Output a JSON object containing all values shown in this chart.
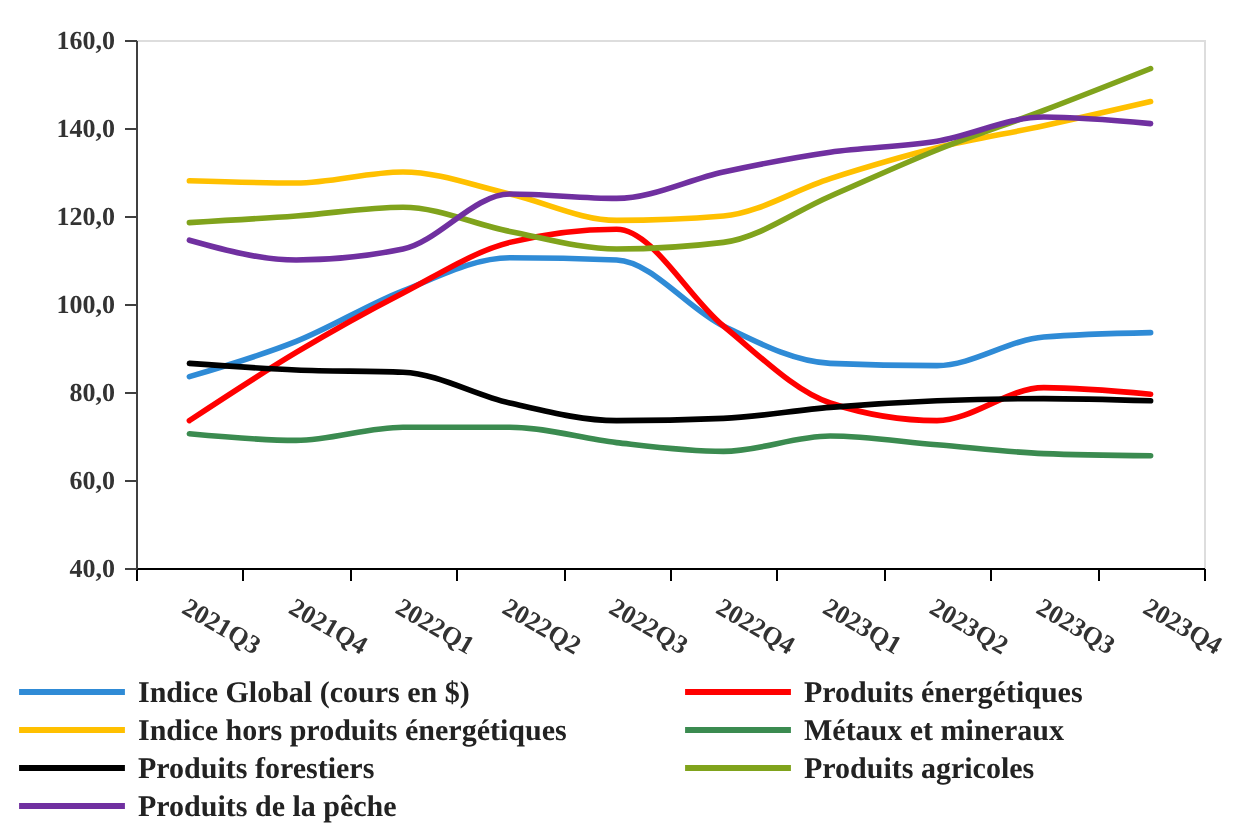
{
  "chart_data": {
    "type": "line",
    "categories": [
      "2021Q3",
      "2021Q4",
      "2022Q1",
      "2022Q2",
      "2022Q3",
      "2022Q4",
      "2023Q1",
      "2023Q2",
      "2023Q3",
      "2023Q4"
    ],
    "series": [
      {
        "name": "Indice Global (cours en $)",
        "color": "#2f8bd6",
        "values": [
          83.5,
          91.5,
          103,
          110.5,
          110,
          95,
          86.5,
          86,
          92.5,
          93.5
        ]
      },
      {
        "name": "Produits énergétiques",
        "color": "#ff0000",
        "values": [
          73.5,
          89,
          102.5,
          114,
          117,
          95,
          77.5,
          73.5,
          81,
          79.5
        ]
      },
      {
        "name": "Indice hors produits énergétiques",
        "color": "#ffc000",
        "values": [
          128,
          127.5,
          130,
          125,
          119,
          120,
          128.5,
          135.5,
          140.5,
          146
        ]
      },
      {
        "name": "Métaux et mineraux",
        "color": "#3b8b50",
        "values": [
          70.5,
          69,
          72,
          72,
          68.5,
          66.5,
          70,
          68,
          66,
          65.5
        ]
      },
      {
        "name": "Produits forestiers",
        "color": "#000000",
        "values": [
          86.5,
          85,
          84.5,
          77.5,
          73.5,
          74,
          76.5,
          78,
          78.5,
          78
        ]
      },
      {
        "name": "Produits agricoles",
        "color": "#80a31c",
        "values": [
          118.5,
          120,
          122,
          116.5,
          112.5,
          114,
          124.5,
          135,
          144,
          153.5
        ]
      },
      {
        "name": "Produits de la pêche",
        "color": "#7030a0",
        "values": [
          114.5,
          110,
          112.5,
          125,
          124,
          130,
          134.5,
          137,
          142.5,
          141
        ]
      }
    ],
    "ylim": [
      40,
      160
    ],
    "yticks": [
      {
        "value": 40,
        "label": "40,0"
      },
      {
        "value": 60,
        "label": "60,0"
      },
      {
        "value": 80,
        "label": "80,0"
      },
      {
        "value": 100,
        "label": "100,0"
      },
      {
        "value": 120,
        "label": "120,0"
      },
      {
        "value": 140,
        "label": "140,0"
      },
      {
        "value": 160,
        "label": "160,0"
      }
    ],
    "legend": "bottom",
    "line_style": "solid"
  }
}
